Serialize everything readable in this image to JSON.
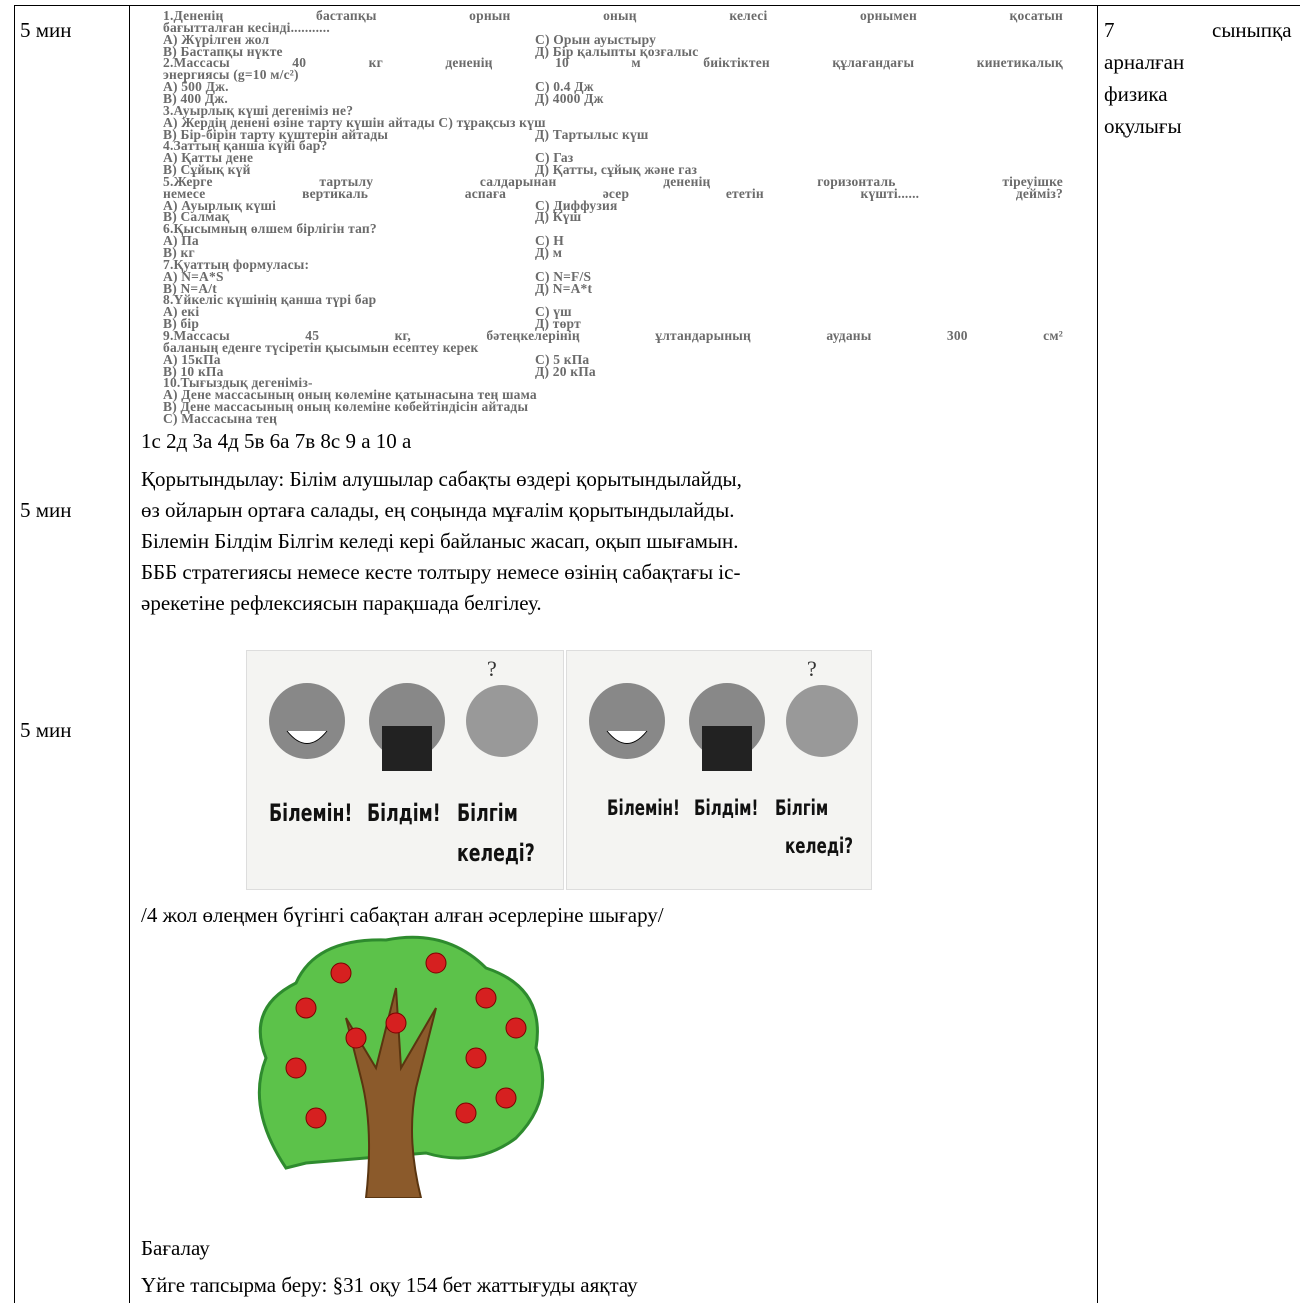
{
  "time_column": [
    "5 мин",
    "5 мин",
    "5 мин"
  ],
  "quiz": [
    [
      "1.Дененің бастапқы орнын оның келесі орнымен қосатын"
    ],
    [
      "бағытталған кесінді..........."
    ],
    [
      "А) Жүрілген жол",
      "С) Орын ауыстыру"
    ],
    [
      "В) Бастапқы нүкте",
      "Д) Бір қалыпты қозғалыс"
    ],
    [
      "2.Массасы 40 кг дененің 10 м биіктіктен құлағандағы кинетикалық"
    ],
    [
      "энергиясы (g=10 м/с²)"
    ],
    [
      "А) 500 Дж.",
      "С) 0.4 Дж"
    ],
    [
      "В) 400 Дж.",
      "Д) 4000 Дж"
    ],
    [
      "3.Ауырлық күші дегеніміз не?"
    ],
    [
      "А) Жердің денені өзіне тарту күшін айтады  С) тұрақсыз күш"
    ],
    [
      "В) Бір-бірін тарту күштерін айтады",
      "Д) Тартылыс күш"
    ],
    [
      "4.Заттың қанша күйі бар?"
    ],
    [
      "А) Қатты дене",
      "С) Газ"
    ],
    [
      "В) Сұйық күй",
      "Д) Қатты, сұйық және газ"
    ],
    [
      "5.Жерге тартылу салдарынан дененің горизонталь тіреуішке"
    ],
    [
      "немесе вертикаль аспаға әсер ететін күшті...... дейміз?"
    ],
    [
      "А) Ауырлық күші",
      "С) Диффузия"
    ],
    [
      "В) Салмақ",
      "Д) Күш"
    ],
    [
      "6.Қысымның өлшем бірлігін тап?"
    ],
    [
      "А) Па",
      "С) Н"
    ],
    [
      "В) кг",
      "Д) м"
    ],
    [
      "7.Қуаттың формуласы:"
    ],
    [
      "А) N=A*S",
      "С) N=F/S"
    ],
    [
      "В) N=A/t",
      "Д) N=A*t"
    ],
    [
      "8.Үйкеліс күшінің қанша түрі бар"
    ],
    [
      "А) екі",
      "С) үш"
    ],
    [
      "В) бір",
      "Д) төрт"
    ],
    [
      "9.Массасы 45 кг, бәтеңкелерінің ұлтандарының ауданы 300 см²"
    ],
    [
      "баланың еденге түсіретін қысымын есептеу керек"
    ],
    [
      "А) 15кПа",
      "С) 5 кПа"
    ],
    [
      "В) 10 кПа",
      "Д) 20 кПа"
    ],
    [
      "10.Тығыздық дегеніміз-"
    ],
    [
      "А) Дене массасының оның көлеміне қатынасына тең шама"
    ],
    [
      "В) Дене массасының оның көлеміне көбейтіндісін айтады"
    ],
    [
      "С) Массасына тең"
    ]
  ],
  "answers": "1с 2д 3а 4д 5в 6а 7в 8с 9 а 10 а",
  "summary_lines": [
    "Қорытындылау: Білім алушылар сабақты өздері қорытындылайды,",
    "өз ойларын ортаға салады, ең соңында мұғалім қорытындылайды.",
    "Білемін Білдім Білгім келеді кері байланыс жасап, оқып шығамын.",
    "БББ стратегиясы немесе кесте толтыру немесе өзінің сабақтағы іс-",
    "әрекетіне рефлексиясын парақшада белгілеу."
  ],
  "cards": [
    {
      "labels": [
        "Білемін!",
        "Білдім!",
        "Білгім",
        "келеді?"
      ]
    },
    {
      "labels": [
        "Білемін!",
        "Білдім!",
        "Білгім",
        "келеді?"
      ]
    }
  ],
  "poem_task": "/4 жол өлеңмен бүгінгі сабақтан алған әсерлеріне шығару/",
  "assessment": "Бағалау",
  "homework": "Үйге тапсырма беру:  §31  оқу  154 бет  жаттығуды аяқтау",
  "resource_lines": [
    "7",
    "сыныпқа",
    "арналған",
    "физика",
    "оқулығы"
  ]
}
